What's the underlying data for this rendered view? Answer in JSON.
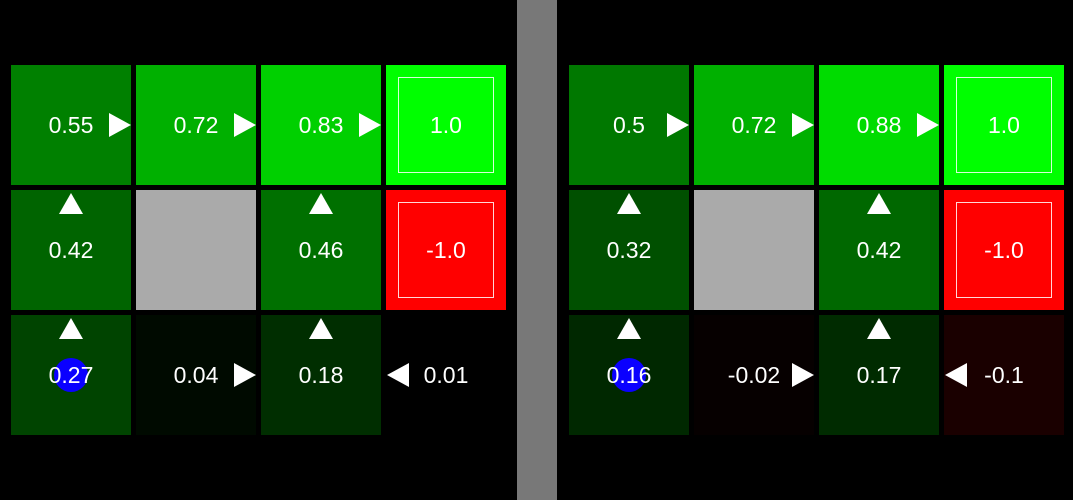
{
  "colors": {
    "background": "#000000",
    "divider": "#787878",
    "wall": "#aaaaaa",
    "text": "#ffffff",
    "agent": "#0a00ff"
  },
  "grids": [
    {
      "id": "left",
      "cells": [
        {
          "row": 0,
          "col": 0,
          "value": "0.55",
          "color": "#008000",
          "arrow": "right"
        },
        {
          "row": 0,
          "col": 1,
          "value": "0.72",
          "color": "#00b000",
          "arrow": "right"
        },
        {
          "row": 0,
          "col": 2,
          "value": "0.83",
          "color": "#00d000",
          "arrow": "right"
        },
        {
          "row": 0,
          "col": 3,
          "value": "1.0",
          "color": "#00ff00",
          "terminal": true
        },
        {
          "row": 1,
          "col": 0,
          "value": "0.42",
          "color": "#006400",
          "arrow": "up"
        },
        {
          "row": 1,
          "col": 1,
          "value": "",
          "color": "#aaaaaa",
          "wall": true
        },
        {
          "row": 1,
          "col": 2,
          "value": "0.46",
          "color": "#007000",
          "arrow": "up"
        },
        {
          "row": 1,
          "col": 3,
          "value": "-1.0",
          "color": "#ff0000",
          "terminal": true
        },
        {
          "row": 2,
          "col": 0,
          "value": "0.27",
          "color": "#004400",
          "arrow": "up",
          "agent": true
        },
        {
          "row": 2,
          "col": 1,
          "value": "0.04",
          "color": "#000a00",
          "arrow": "right"
        },
        {
          "row": 2,
          "col": 2,
          "value": "0.18",
          "color": "#002e00",
          "arrow": "up"
        },
        {
          "row": 2,
          "col": 3,
          "value": "0.01",
          "color": "#000000",
          "arrow": "left"
        }
      ]
    },
    {
      "id": "right",
      "cells": [
        {
          "row": 0,
          "col": 0,
          "value": "0.5",
          "color": "#007800",
          "arrow": "right"
        },
        {
          "row": 0,
          "col": 1,
          "value": "0.72",
          "color": "#00b000",
          "arrow": "right"
        },
        {
          "row": 0,
          "col": 2,
          "value": "0.88",
          "color": "#00dc00",
          "arrow": "right"
        },
        {
          "row": 0,
          "col": 3,
          "value": "1.0",
          "color": "#00ff00",
          "terminal": true
        },
        {
          "row": 1,
          "col": 0,
          "value": "0.32",
          "color": "#005000",
          "arrow": "up"
        },
        {
          "row": 1,
          "col": 1,
          "value": "",
          "color": "#aaaaaa",
          "wall": true
        },
        {
          "row": 1,
          "col": 2,
          "value": "0.42",
          "color": "#006800",
          "arrow": "up"
        },
        {
          "row": 1,
          "col": 3,
          "value": "-1.0",
          "color": "#ff0000",
          "terminal": true
        },
        {
          "row": 2,
          "col": 0,
          "value": "0.16",
          "color": "#002800",
          "arrow": "up",
          "agent": true
        },
        {
          "row": 2,
          "col": 1,
          "value": "-0.02",
          "color": "#060000",
          "arrow": "right"
        },
        {
          "row": 2,
          "col": 2,
          "value": "0.17",
          "color": "#002b00",
          "arrow": "up"
        },
        {
          "row": 2,
          "col": 3,
          "value": "-0.1",
          "color": "#1a0000",
          "arrow": "left"
        }
      ]
    }
  ]
}
